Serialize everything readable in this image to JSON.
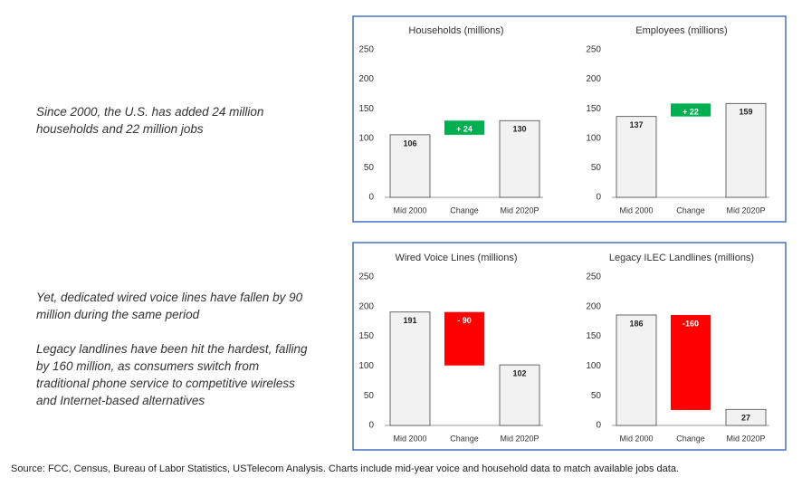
{
  "notes": [
    "Since 2000, the U.S. has added 24 million households and 22 million jobs",
    "Yet, dedicated wired voice lines have fallen by 90 million during the same period",
    "Legacy landlines have been hit the hardest, falling by 160 million, as consumers switch from traditional phone service to competitive wireless and Internet-based alternatives"
  ],
  "source": "Source: FCC, Census, Bureau of Labor Statistics, USTelecom Analysis. Charts include mid-year voice and household data to match available jobs data.",
  "chart_data": [
    {
      "type": "waterfall",
      "title": "Households (millions)",
      "categories": [
        "Mid 2000",
        "Change",
        "Mid 2020P"
      ],
      "values": [
        106,
        24,
        130
      ],
      "value_labels": [
        "106",
        "+ 24",
        "130"
      ],
      "colors": [
        "#f2f2f2",
        "#00b050",
        "#f2f2f2"
      ],
      "ylim": [
        0,
        250
      ],
      "yticks": [
        0,
        50,
        100,
        150,
        200,
        250
      ]
    },
    {
      "type": "waterfall",
      "title": "Employees (millions)",
      "categories": [
        "Mid 2000",
        "Change",
        "Mid 2020P"
      ],
      "values": [
        137,
        22,
        159
      ],
      "value_labels": [
        "137",
        "+ 22",
        "159"
      ],
      "colors": [
        "#f2f2f2",
        "#00b050",
        "#f2f2f2"
      ],
      "ylim": [
        0,
        250
      ],
      "yticks": [
        0,
        50,
        100,
        150,
        200,
        250
      ]
    },
    {
      "type": "waterfall",
      "title": "Wired Voice Lines (millions)",
      "categories": [
        "Mid 2000",
        "Change",
        "Mid 2020P"
      ],
      "values": [
        191,
        -90,
        102
      ],
      "value_labels": [
        "191",
        "- 90",
        "102"
      ],
      "colors": [
        "#f2f2f2",
        "#ff0000",
        "#f2f2f2"
      ],
      "ylim": [
        0,
        250
      ],
      "yticks": [
        0,
        50,
        100,
        150,
        200,
        250
      ]
    },
    {
      "type": "waterfall",
      "title": "Legacy ILEC Landlines (millions)",
      "categories": [
        "Mid 2000",
        "Change",
        "Mid 2020P"
      ],
      "values": [
        186,
        -160,
        27
      ],
      "value_labels": [
        "186",
        "-160",
        "27"
      ],
      "colors": [
        "#f2f2f2",
        "#ff0000",
        "#f2f2f2"
      ],
      "ylim": [
        0,
        250
      ],
      "yticks": [
        0,
        50,
        100,
        150,
        200,
        250
      ]
    }
  ]
}
